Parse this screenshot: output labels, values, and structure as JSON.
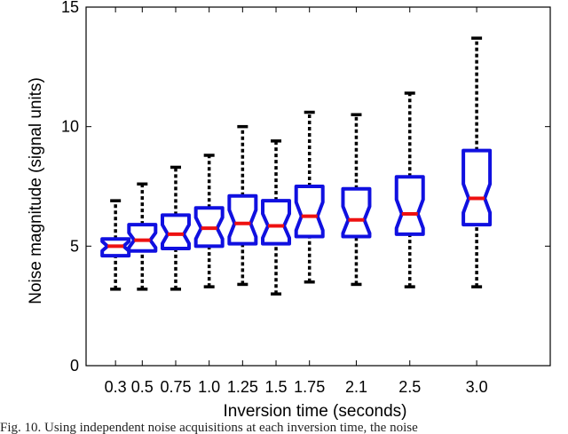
{
  "chart_data": {
    "type": "box",
    "xlabel": "Inversion time (seconds)",
    "ylabel": "Noise magnitude (signal units)",
    "ylim": [
      0,
      15
    ],
    "yticks": [
      "0",
      "5",
      "10",
      "15"
    ],
    "categories": [
      "0.3",
      "0.5",
      "0.75",
      "1.0",
      "1.25",
      "1.5",
      "1.75",
      "2.1",
      "2.5",
      "3.0"
    ],
    "x": [
      0.3,
      0.5,
      0.75,
      1.0,
      1.25,
      1.5,
      1.75,
      2.1,
      2.5,
      3.0
    ],
    "series": [
      {
        "whisker_low": [
          3.2,
          3.2,
          3.2,
          3.3,
          3.4,
          3.0,
          3.5,
          3.4,
          3.3,
          3.3
        ],
        "q1": [
          4.6,
          4.8,
          4.9,
          5.0,
          5.1,
          5.1,
          5.4,
          5.4,
          5.5,
          5.9
        ],
        "median": [
          5.0,
          5.25,
          5.5,
          5.75,
          5.95,
          5.85,
          6.25,
          6.1,
          6.35,
          7.0
        ],
        "q3": [
          5.3,
          5.9,
          6.3,
          6.6,
          7.1,
          6.9,
          7.5,
          7.4,
          7.9,
          9.0
        ],
        "whisker_high": [
          6.9,
          7.6,
          8.3,
          8.8,
          10.0,
          9.4,
          10.6,
          10.5,
          11.4,
          13.7
        ]
      }
    ],
    "colors": {
      "box": "#1010e0",
      "median": "#ee1111",
      "whisker": "#000000"
    },
    "grid": false,
    "legend": "none"
  },
  "caption": "Fig. 10.  Using independent noise acquisitions at each inversion time, the noise"
}
